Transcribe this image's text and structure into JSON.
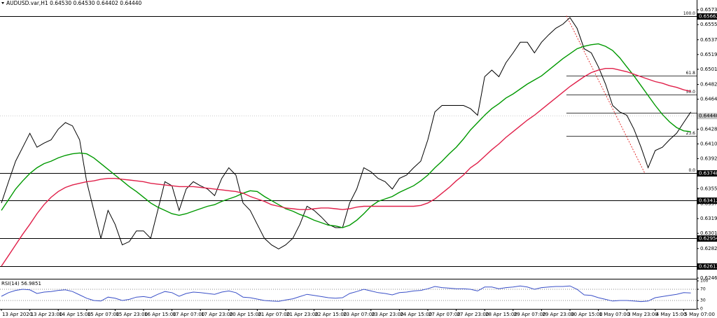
{
  "chart_data": [
    {
      "type": "line",
      "title": "AUDUSD.var,H1 0.64530 0.64530 0.64402 0.64440",
      "categories": [
        "13 Apr 2020",
        null,
        null,
        null,
        "13 Apr 23:00",
        null,
        null,
        null,
        "14 Apr 15:00",
        null,
        null,
        null,
        "15 Apr 07:00",
        null,
        null,
        null,
        "15 Apr 23:00",
        null,
        null,
        null,
        "16 Apr 15:00",
        null,
        null,
        null,
        "17 Apr 07:00",
        null,
        null,
        null,
        "17 Apr 23:00",
        null,
        null,
        null,
        "20 Apr 15:00",
        null,
        null,
        null,
        "21 Apr 07:00",
        null,
        null,
        null,
        "21 Apr 23:00",
        null,
        null,
        null,
        "22 Apr 15:00",
        null,
        null,
        null,
        "23 Apr 07:00",
        null,
        null,
        null,
        "23 Apr 23:00",
        null,
        null,
        null,
        "24 Apr 15:00",
        null,
        null,
        null,
        "27 Apr 07:00",
        null,
        null,
        null,
        "27 Apr 23:00",
        null,
        null,
        null,
        "28 Apr 15:00",
        null,
        null,
        null,
        "29 Apr 07:00",
        null,
        null,
        null,
        "29 Apr 23:00",
        null,
        null,
        null,
        "30 Apr 15:00",
        null,
        null,
        null,
        "1 May 07:00",
        null,
        null,
        null,
        "3 May 23:00",
        null,
        null,
        null,
        "4 May 15:00",
        null,
        null,
        null,
        "5 May 07:00",
        null
      ],
      "series": [
        {
          "color": "#000000",
          "values": [
            0.6338,
            0.6364,
            0.6389,
            0.6406,
            0.6423,
            0.6406,
            0.6411,
            0.6415,
            0.6428,
            0.6436,
            0.6432,
            0.6415,
            0.6364,
            0.6329,
            0.6295,
            0.6329,
            0.6312,
            0.6287,
            0.6291,
            0.6304,
            0.6304,
            0.6295,
            0.6329,
            0.6364,
            0.6359,
            0.6329,
            0.6355,
            0.6364,
            0.6359,
            0.6355,
            0.6347,
            0.6368,
            0.6381,
            0.6372,
            0.6338,
            0.6329,
            0.6312,
            0.6295,
            0.6287,
            0.6282,
            0.6287,
            0.6295,
            0.6312,
            0.6334,
            0.6329,
            0.6321,
            0.6312,
            0.6308,
            0.6308,
            0.6338,
            0.6355,
            0.6381,
            0.6376,
            0.6368,
            0.6364,
            0.6355,
            0.6368,
            0.6372,
            0.6381,
            0.6389,
            0.6415,
            0.6449,
            0.6457,
            0.6457,
            0.6457,
            0.6457,
            0.6453,
            0.6445,
            0.6492,
            0.65,
            0.6492,
            0.6509,
            0.6521,
            0.6534,
            0.6534,
            0.6521,
            0.6534,
            0.6543,
            0.6551,
            0.6556,
            0.6564,
            0.6551,
            0.6526,
            0.6521,
            0.6504,
            0.6483,
            0.6457,
            0.6449,
            0.6445,
            0.6428,
            0.6406,
            0.6381,
            0.6402,
            0.6406,
            0.6415,
            0.6423,
            0.6436,
            0.6449
          ]
        },
        {
          "color": "#009900",
          "values": [
            0.6329,
            0.6342,
            0.6355,
            0.6365,
            0.6374,
            0.6381,
            0.6386,
            0.6389,
            0.6393,
            0.6396,
            0.6398,
            0.6399,
            0.6398,
            0.6393,
            0.6386,
            0.6379,
            0.6372,
            0.6365,
            0.6358,
            0.6352,
            0.6345,
            0.6338,
            0.6333,
            0.6329,
            0.6325,
            0.6323,
            0.6325,
            0.6328,
            0.6331,
            0.6334,
            0.6336,
            0.634,
            0.6343,
            0.6346,
            0.635,
            0.6353,
            0.6352,
            0.6346,
            0.6341,
            0.6336,
            0.6331,
            0.6328,
            0.6324,
            0.6321,
            0.6317,
            0.6314,
            0.6311,
            0.631,
            0.6308,
            0.6311,
            0.6317,
            0.6325,
            0.6334,
            0.634,
            0.6343,
            0.6346,
            0.6351,
            0.6355,
            0.6359,
            0.6365,
            0.6372,
            0.6381,
            0.6389,
            0.6398,
            0.6406,
            0.6416,
            0.6427,
            0.6436,
            0.6445,
            0.6453,
            0.6459,
            0.6466,
            0.6471,
            0.6477,
            0.6483,
            0.6488,
            0.6493,
            0.65,
            0.6507,
            0.6514,
            0.652,
            0.6526,
            0.6529,
            0.6531,
            0.6532,
            0.6529,
            0.6524,
            0.6515,
            0.6504,
            0.6493,
            0.6481,
            0.6469,
            0.6457,
            0.6446,
            0.6437,
            0.643,
            0.6426,
            0.6425
          ]
        },
        {
          "color": "#e0204a",
          "values": [
            0.6261,
            0.6274,
            0.6287,
            0.63,
            0.6312,
            0.6325,
            0.6336,
            0.6345,
            0.6352,
            0.6357,
            0.636,
            0.6362,
            0.6364,
            0.6365,
            0.6367,
            0.6368,
            0.6368,
            0.6367,
            0.6366,
            0.6365,
            0.6364,
            0.6362,
            0.6361,
            0.636,
            0.6359,
            0.6358,
            0.6358,
            0.6358,
            0.6357,
            0.6356,
            0.6355,
            0.6354,
            0.6353,
            0.6352,
            0.635,
            0.6346,
            0.6343,
            0.634,
            0.6336,
            0.6334,
            0.6332,
            0.6331,
            0.633,
            0.633,
            0.6331,
            0.6332,
            0.6332,
            0.6331,
            0.633,
            0.6331,
            0.6333,
            0.6334,
            0.6334,
            0.6334,
            0.6334,
            0.6334,
            0.6334,
            0.6334,
            0.6334,
            0.6335,
            0.6338,
            0.6343,
            0.635,
            0.6357,
            0.6365,
            0.6372,
            0.6381,
            0.6387,
            0.6395,
            0.6403,
            0.641,
            0.6418,
            0.6425,
            0.6432,
            0.6439,
            0.6445,
            0.6452,
            0.6459,
            0.6466,
            0.6473,
            0.648,
            0.6486,
            0.6492,
            0.6497,
            0.65,
            0.6502,
            0.6502,
            0.65,
            0.6498,
            0.6495,
            0.6492,
            0.6489,
            0.6486,
            0.6484,
            0.6481,
            0.6479,
            0.6476,
            0.6474
          ]
        }
      ],
      "ylim": [
        0.62465,
        0.65735
      ],
      "yticks": [
        0.65735,
        0.65555,
        {
          "value": 0.6537,
          "label": "0.65370"
        },
        {
          "value": 0.6519,
          "label": "0.65190"
        },
        {
          "value": 0.6501,
          "label": "0.65010"
        },
        0.64825,
        0.64645,
        {
          "value": 0.6428,
          "label": "0.64280"
        },
        {
          "value": 0.641,
          "label": "0.64100"
        },
        {
          "value": 0.6392,
          "label": "0.63920"
        },
        0.63555,
        {
          "value": 0.6337,
          "label": "0.63370"
        },
        {
          "value": 0.6319,
          "label": "0.63190"
        },
        {
          "value": 0.6301,
          "label": "0.63010"
        },
        0.62825,
        0.62465
      ],
      "levels": [
        0.65662,
        0.63748,
        0.63412,
        0.62954,
        0.62613
      ],
      "current_price": {
        "value": 0.6444,
        "label": "0.64440"
      },
      "fib_levels": [
        {
          "label": "100.0",
          "price": 0.65662
        },
        {
          "label": "61.8",
          "price": 0.64931
        },
        {
          "label": "50.0",
          "price": 0.64705
        },
        {
          "price": 0.64479
        },
        {
          "label": "23.6",
          "price": 0.642
        },
        {
          "label": "0.0",
          "price": 0.63748
        }
      ]
    },
    {
      "type": "line",
      "title": "RSI(14) 56.9851",
      "series": [
        {
          "color": "#3a50c8",
          "values": [
            45,
            58,
            66,
            70,
            68,
            55,
            60,
            62,
            66,
            68,
            62,
            50,
            38,
            30,
            28,
            42,
            38,
            30,
            34,
            42,
            44,
            40,
            52,
            62,
            58,
            45,
            55,
            60,
            58,
            55,
            52,
            60,
            64,
            58,
            42,
            40,
            35,
            30,
            28,
            27,
            32,
            36,
            44,
            52,
            48,
            44,
            40,
            38,
            40,
            55,
            62,
            70,
            64,
            58,
            55,
            50,
            58,
            60,
            64,
            66,
            72,
            80,
            76,
            74,
            72,
            72,
            70,
            64,
            78,
            78,
            72,
            76,
            78,
            82,
            78,
            70,
            76,
            78,
            80,
            80,
            82,
            70,
            50,
            48,
            40,
            34,
            28,
            30,
            30,
            28,
            26,
            28,
            40,
            44,
            48,
            52,
            58,
            57
          ]
        }
      ],
      "ylim": [
        0,
        100
      ],
      "yticks": [
        0,
        30,
        70,
        100
      ],
      "grid": [
        30,
        70
      ]
    }
  ]
}
